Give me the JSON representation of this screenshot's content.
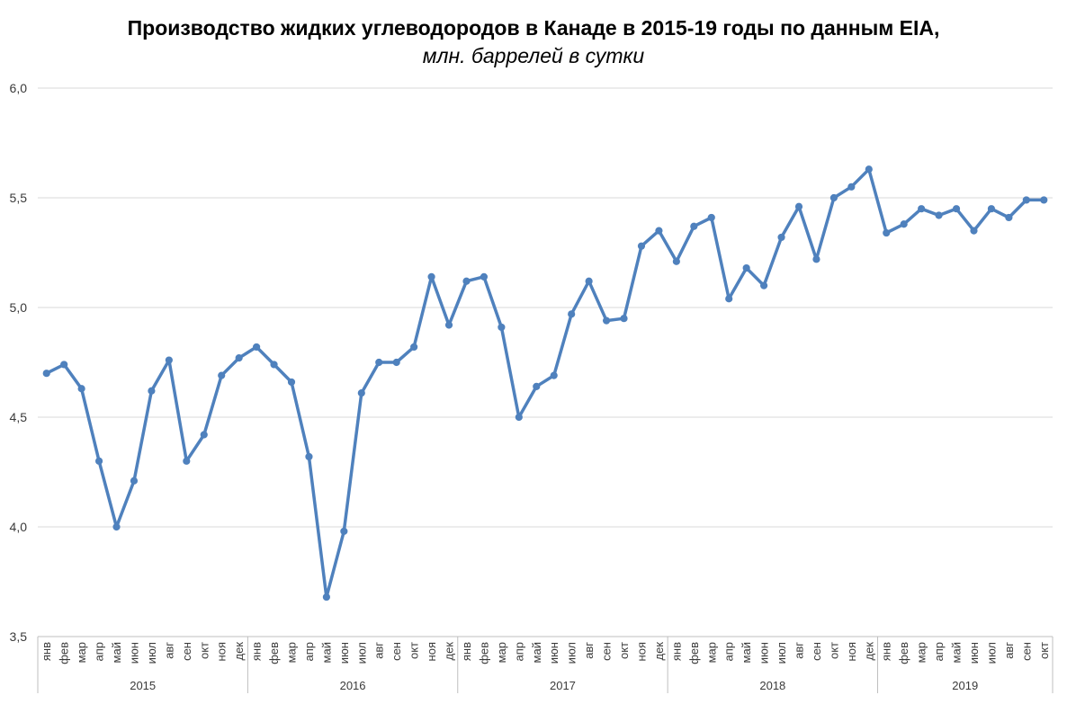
{
  "title": "Производство жидких углеводородов в Канаде в 2015-19 годы по данным EIA,",
  "subtitle": "млн. баррелей в сутки",
  "chart_data": {
    "type": "line",
    "title": "Производство жидких углеводородов в Канаде в 2015-19 годы по данным EIA,",
    "subtitle": "млн. баррелей в сутки",
    "xlabel": "",
    "ylabel": "",
    "ylim": [
      3.5,
      6.0
    ],
    "yticks": [
      "3,5",
      "4,0",
      "4,5",
      "5,0",
      "5,5",
      "6,0"
    ],
    "grid": "horizontal",
    "legend": "none",
    "line_color": "#4F81BD",
    "years": [
      {
        "label": "2015",
        "months": 12
      },
      {
        "label": "2016",
        "months": 12
      },
      {
        "label": "2017",
        "months": 12
      },
      {
        "label": "2018",
        "months": 12
      },
      {
        "label": "2019",
        "months": 10
      }
    ],
    "month_labels": [
      "янв",
      "фев",
      "мар",
      "апр",
      "май",
      "июн",
      "июл",
      "авг",
      "сен",
      "окт",
      "ноя",
      "дек"
    ],
    "series": [
      {
        "values": [
          4.7,
          4.74,
          4.63,
          4.3,
          4.0,
          4.21,
          4.62,
          4.76,
          4.3,
          4.42,
          4.69,
          4.77,
          4.82,
          4.74,
          4.66,
          4.32,
          3.68,
          3.98,
          4.61,
          4.75,
          4.75,
          4.82,
          5.14,
          4.92,
          5.12,
          5.14,
          4.91,
          4.5,
          4.64,
          4.69,
          4.97,
          5.12,
          4.94,
          4.95,
          5.28,
          5.35,
          5.21,
          5.37,
          5.41,
          5.04,
          5.18,
          5.1,
          5.32,
          5.46,
          5.22,
          5.5,
          5.55,
          5.63,
          5.34,
          5.38,
          5.45,
          5.42,
          5.45,
          5.35,
          5.45,
          5.41,
          5.49,
          5.49
        ]
      }
    ]
  }
}
